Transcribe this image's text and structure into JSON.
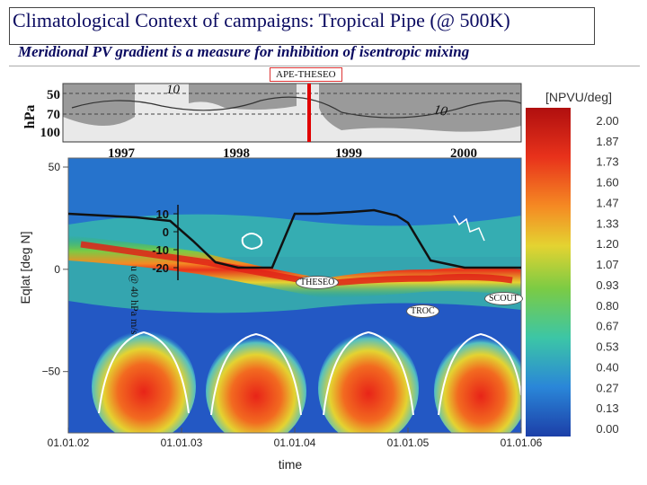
{
  "header": {
    "title": "Climatological Context of campaigns:  Tropical Pipe (@ 500K)",
    "subtitle": "Meridional PV gradient is a measure for inhibition of isentropic mixing"
  },
  "campaigns": {
    "ape_theseo": "APE-THESEO",
    "theseo": "THESEO",
    "troc": "TROC",
    "scout": "SCOUT"
  },
  "colors": {
    "low": "#1c52c6",
    "mid": "#2bb35a",
    "high": "#e82418",
    "marker": "#e00000"
  },
  "chart_data": [
    {
      "type": "heatmap",
      "xlabel": "time",
      "ylabel": "Eqlat [deg N]",
      "x_ticks": [
        "01.01.02",
        "01.01.03",
        "01.01.04",
        "01.01.05",
        "01.01.06"
      ],
      "y_ticks": [
        "50",
        "0",
        "−50"
      ],
      "ylim": [
        -80,
        50
      ],
      "colorbar": {
        "label": "[NPVU/deg]",
        "ticks": [
          "2.00",
          "1.87",
          "1.73",
          "1.60",
          "1.47",
          "1.33",
          "1.20",
          "1.07",
          "0.93",
          "0.80",
          "0.67",
          "0.53",
          "0.40",
          "0.27",
          "0.13",
          "0.00"
        ],
        "range": [
          0,
          2
        ],
        "colors": [
          "#1c3fa8",
          "#1f5cc9",
          "#2a86d8",
          "#35b4d9",
          "#3cc6a6",
          "#4ec26a",
          "#7bcb44",
          "#b5d13a",
          "#e4d331",
          "#f5b52b",
          "#f58a23",
          "#f05a1f",
          "#e8321b",
          "#d91e18",
          "#c71414",
          "#b00f0f"
        ]
      },
      "overlay_line": {
        "y_ticks": [
          "10",
          "0",
          "-10",
          "-20"
        ],
        "ylim": [
          -25,
          15
        ],
        "label": "u @ 40 hPa m/s",
        "x": [
          2002.0,
          2002.3,
          2002.6,
          2002.9,
          2003.1,
          2003.3,
          2003.5,
          2003.7,
          2003.8,
          2004.0,
          2004.2,
          2004.5,
          2004.7,
          2004.9,
          2005.0,
          2005.2,
          2005.5,
          2005.8,
          2006.0
        ],
        "y": [
          10,
          9,
          8,
          6,
          -5,
          -17,
          -20,
          -20,
          -20,
          10,
          10,
          11,
          12,
          9,
          5,
          -16,
          -20,
          -20,
          -20
        ]
      }
    },
    {
      "type": "heatmap",
      "ylabel": "hPa",
      "y_ticks": [
        "50",
        "70",
        "100"
      ],
      "x_ticks": [
        "1997",
        "1998",
        "1999",
        "2000"
      ],
      "contour_labels": [
        "10",
        "10"
      ]
    }
  ]
}
